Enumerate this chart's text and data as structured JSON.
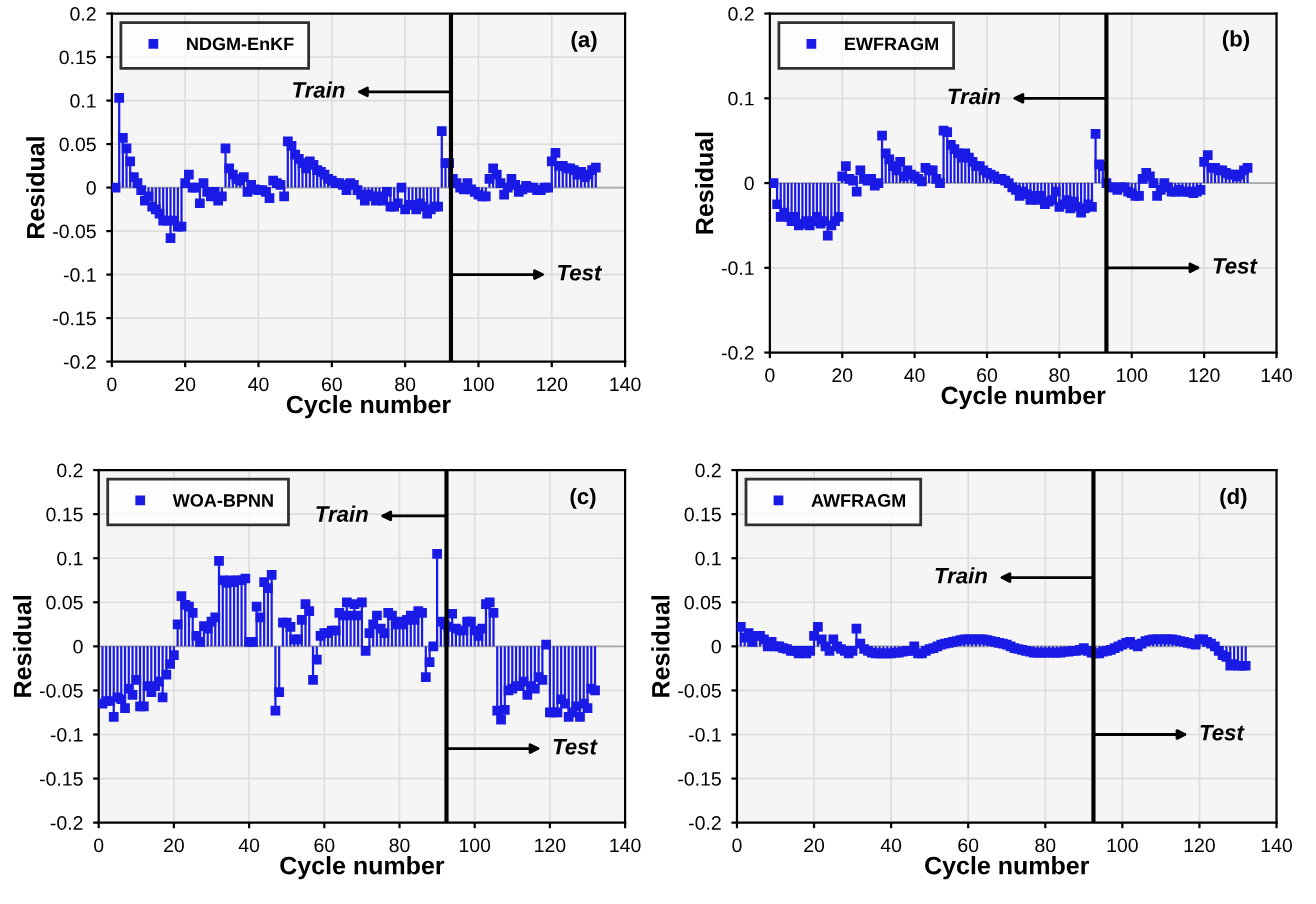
{
  "chart_data": [
    {
      "type": "lollipop",
      "xlabel": "Cycle number",
      "ylabel": "Residual",
      "xlim": [
        0,
        140
      ],
      "xticks": [
        0,
        20,
        40,
        60,
        80,
        100,
        120,
        140
      ],
      "ylim": [
        -0.2,
        0.2
      ],
      "yticks": [
        -0.2,
        -0.15,
        -0.1,
        -0.05,
        0,
        0.05,
        0.1,
        0.15,
        0.2
      ],
      "grid": true,
      "legend": "top left",
      "marker": "square",
      "x": [
        1,
        2,
        3,
        4,
        5,
        6,
        7,
        8,
        9,
        10,
        11,
        12,
        13,
        14,
        15,
        16,
        17,
        18,
        19,
        20,
        21,
        22,
        23,
        24,
        25,
        26,
        27,
        28,
        29,
        30,
        31,
        32,
        33,
        34,
        35,
        36,
        37,
        38,
        39,
        40,
        41,
        42,
        43,
        44,
        45,
        46,
        47,
        48,
        49,
        50,
        51,
        52,
        53,
        54,
        55,
        56,
        57,
        58,
        59,
        60,
        61,
        62,
        63,
        64,
        65,
        66,
        67,
        68,
        69,
        70,
        71,
        72,
        73,
        74,
        75,
        76,
        77,
        78,
        79,
        80,
        81,
        82,
        83,
        84,
        85,
        86,
        87,
        88,
        89,
        90,
        91,
        92,
        93,
        94,
        95,
        96,
        97,
        98,
        99,
        100,
        101,
        102,
        103,
        104,
        105,
        106,
        107,
        108,
        109,
        110,
        111,
        112,
        113,
        114,
        115,
        116,
        117,
        118,
        119,
        120,
        121,
        122,
        123,
        124,
        125,
        126,
        127,
        128,
        129,
        130,
        131,
        132
      ],
      "series": [
        {
          "name": "NDGM-EnKF",
          "color": "#1a1ae6",
          "values": [
            0.0,
            0.103,
            0.057,
            0.045,
            0.03,
            0.012,
            0.005,
            -0.003,
            -0.015,
            -0.01,
            -0.022,
            -0.025,
            -0.03,
            -0.038,
            -0.038,
            -0.058,
            -0.038,
            -0.045,
            -0.045,
            0.005,
            0.015,
            0.0,
            0.0,
            -0.018,
            0.005,
            -0.005,
            -0.01,
            -0.005,
            -0.015,
            -0.01,
            0.045,
            0.022,
            0.015,
            0.01,
            0.008,
            0.012,
            -0.005,
            0.003,
            -0.002,
            -0.003,
            -0.003,
            -0.005,
            -0.012,
            0.008,
            0.005,
            0.003,
            -0.01,
            0.053,
            0.048,
            0.038,
            0.033,
            0.028,
            0.022,
            0.03,
            0.026,
            0.02,
            0.018,
            0.015,
            0.01,
            0.008,
            0.005,
            0.005,
            0.003,
            -0.003,
            0.005,
            0.003,
            -0.003,
            -0.008,
            -0.015,
            -0.008,
            -0.01,
            -0.015,
            -0.01,
            -0.015,
            -0.005,
            -0.022,
            -0.022,
            -0.018,
            0.0,
            -0.025,
            -0.02,
            -0.02,
            -0.025,
            -0.018,
            -0.022,
            -0.03,
            -0.025,
            -0.022,
            -0.022,
            0.065,
            0.028,
            0.028,
            0.01,
            0.005,
            0.0,
            -0.002,
            0.005,
            -0.002,
            -0.005,
            -0.008,
            -0.01,
            -0.01,
            0.01,
            0.022,
            0.015,
            0.005,
            -0.008,
            0.0,
            0.01,
            0.003,
            -0.005,
            -0.002,
            0.002,
            0.0,
            0.0,
            -0.003,
            -0.003,
            0.0,
            0.0,
            0.03,
            0.04,
            0.025,
            0.025,
            0.022,
            0.022,
            0.02,
            0.015,
            0.018,
            0.012,
            0.015,
            0.02,
            0.023
          ]
        }
      ],
      "ref_lines": [
        {
          "axis": "x",
          "value": 92.5,
          "color": "#000000"
        }
      ],
      "annotations": [
        "(a)",
        "Train",
        "Test"
      ]
    },
    {
      "type": "lollipop",
      "xlabel": "Cycle number",
      "ylabel": "Residual",
      "xlim": [
        0,
        140
      ],
      "xticks": [
        0,
        20,
        40,
        60,
        80,
        100,
        120,
        140
      ],
      "ylim": [
        -0.2,
        0.2
      ],
      "yticks": [
        -0.2,
        -0.1,
        0,
        0.1,
        0.2
      ],
      "grid": true,
      "legend": "top left",
      "marker": "square",
      "x": [
        1,
        2,
        3,
        4,
        5,
        6,
        7,
        8,
        9,
        10,
        11,
        12,
        13,
        14,
        15,
        16,
        17,
        18,
        19,
        20,
        21,
        22,
        23,
        24,
        25,
        26,
        27,
        28,
        29,
        30,
        31,
        32,
        33,
        34,
        35,
        36,
        37,
        38,
        39,
        40,
        41,
        42,
        43,
        44,
        45,
        46,
        47,
        48,
        49,
        50,
        51,
        52,
        53,
        54,
        55,
        56,
        57,
        58,
        59,
        60,
        61,
        62,
        63,
        64,
        65,
        66,
        67,
        68,
        69,
        70,
        71,
        72,
        73,
        74,
        75,
        76,
        77,
        78,
        79,
        80,
        81,
        82,
        83,
        84,
        85,
        86,
        87,
        88,
        89,
        90,
        91,
        92,
        93,
        94,
        95,
        96,
        97,
        98,
        99,
        100,
        101,
        102,
        103,
        104,
        105,
        106,
        107,
        108,
        109,
        110,
        111,
        112,
        113,
        114,
        115,
        116,
        117,
        118,
        119,
        120,
        121,
        122,
        123,
        124,
        125,
        126,
        127,
        128,
        129,
        130,
        131,
        132
      ],
      "series": [
        {
          "name": "EWFRAGM",
          "color": "#1a1ae6",
          "values": [
            0.0,
            -0.025,
            -0.04,
            -0.035,
            -0.04,
            -0.045,
            -0.04,
            -0.05,
            -0.048,
            -0.045,
            -0.05,
            -0.045,
            -0.04,
            -0.048,
            -0.045,
            -0.062,
            -0.05,
            -0.045,
            -0.04,
            0.008,
            0.02,
            0.005,
            0.003,
            -0.01,
            0.015,
            0.005,
            0.003,
            0.005,
            -0.003,
            0.0,
            0.056,
            0.035,
            0.028,
            0.02,
            0.015,
            0.025,
            0.008,
            0.015,
            0.01,
            0.008,
            0.005,
            0.002,
            0.018,
            0.015,
            0.015,
            0.005,
            0.0,
            0.062,
            0.06,
            0.045,
            0.04,
            0.035,
            0.03,
            0.035,
            0.03,
            0.025,
            0.02,
            0.02,
            0.015,
            0.012,
            0.01,
            0.008,
            0.005,
            0.005,
            0.003,
            0.0,
            -0.005,
            -0.008,
            -0.015,
            -0.01,
            -0.013,
            -0.02,
            -0.015,
            -0.02,
            -0.015,
            -0.025,
            -0.022,
            -0.02,
            -0.01,
            -0.028,
            -0.025,
            -0.02,
            -0.03,
            -0.022,
            -0.028,
            -0.035,
            -0.03,
            -0.025,
            -0.028,
            0.058,
            0.022,
            0.02,
            0.0,
            -0.005,
            -0.005,
            -0.008,
            -0.005,
            -0.005,
            -0.01,
            -0.012,
            -0.015,
            -0.015,
            0.005,
            0.012,
            0.008,
            0.0,
            -0.015,
            -0.008,
            0.0,
            -0.005,
            -0.01,
            -0.01,
            -0.008,
            -0.01,
            -0.01,
            -0.01,
            -0.012,
            -0.01,
            -0.008,
            0.025,
            0.033,
            0.018,
            0.018,
            0.015,
            0.015,
            0.012,
            0.01,
            0.01,
            0.008,
            0.01,
            0.015,
            0.018
          ]
        }
      ],
      "ref_lines": [
        {
          "axis": "x",
          "value": 93,
          "color": "#000000"
        }
      ],
      "annotations": [
        "(b)",
        "Train",
        "Test"
      ]
    },
    {
      "type": "lollipop",
      "xlabel": "Cycle number",
      "ylabel": "Residual",
      "xlim": [
        0,
        140
      ],
      "xticks": [
        0,
        20,
        40,
        60,
        80,
        100,
        120,
        140
      ],
      "ylim": [
        -0.2,
        0.2
      ],
      "yticks": [
        -0.2,
        -0.15,
        -0.1,
        -0.05,
        0,
        0.05,
        0.1,
        0.15,
        0.2
      ],
      "grid": true,
      "legend": "top left",
      "marker": "square",
      "x": [
        1,
        2,
        3,
        4,
        5,
        6,
        7,
        8,
        9,
        10,
        11,
        12,
        13,
        14,
        15,
        16,
        17,
        18,
        19,
        20,
        21,
        22,
        23,
        24,
        25,
        26,
        27,
        28,
        29,
        30,
        31,
        32,
        33,
        34,
        35,
        36,
        37,
        38,
        39,
        40,
        41,
        42,
        43,
        44,
        45,
        46,
        47,
        48,
        49,
        50,
        51,
        52,
        53,
        54,
        55,
        56,
        57,
        58,
        59,
        60,
        61,
        62,
        63,
        64,
        65,
        66,
        67,
        68,
        69,
        70,
        71,
        72,
        73,
        74,
        75,
        76,
        77,
        78,
        79,
        80,
        81,
        82,
        83,
        84,
        85,
        86,
        87,
        88,
        89,
        90,
        91,
        92,
        93,
        94,
        95,
        96,
        97,
        98,
        99,
        100,
        101,
        102,
        103,
        104,
        105,
        106,
        107,
        108,
        109,
        110,
        111,
        112,
        113,
        114,
        115,
        116,
        117,
        118,
        119,
        120,
        121,
        122,
        123,
        124,
        125,
        126,
        127,
        128,
        129,
        130,
        131,
        132
      ],
      "series": [
        {
          "name": "WOA-BPNN",
          "color": "#1a1ae6",
          "values": [
            -0.065,
            -0.062,
            -0.062,
            -0.08,
            -0.058,
            -0.06,
            -0.07,
            -0.048,
            -0.055,
            -0.038,
            -0.068,
            -0.068,
            -0.045,
            -0.052,
            -0.045,
            -0.04,
            -0.058,
            -0.032,
            -0.02,
            -0.01,
            0.025,
            0.057,
            0.047,
            0.045,
            0.038,
            0.012,
            0.005,
            0.023,
            0.02,
            0.028,
            0.033,
            0.097,
            0.075,
            0.072,
            0.075,
            0.073,
            0.075,
            0.075,
            0.077,
            0.005,
            0.005,
            0.045,
            0.033,
            0.073,
            0.066,
            0.081,
            -0.073,
            -0.052,
            0.027,
            0.027,
            0.022,
            0.008,
            0.008,
            0.03,
            0.048,
            0.04,
            -0.038,
            -0.015,
            0.012,
            0.015,
            0.015,
            0.018,
            0.018,
            0.038,
            0.035,
            0.05,
            0.035,
            0.048,
            0.035,
            0.05,
            -0.005,
            0.015,
            0.025,
            0.035,
            0.02,
            0.015,
            0.038,
            0.035,
            0.025,
            0.028,
            0.025,
            0.03,
            0.035,
            0.03,
            0.04,
            0.038,
            -0.035,
            -0.018,
            0.0,
            0.105,
            0.028,
            0.025,
            0.022,
            0.037,
            0.02,
            0.018,
            0.018,
            0.028,
            0.028,
            0.018,
            0.012,
            0.02,
            0.048,
            0.05,
            0.038,
            -0.073,
            -0.083,
            -0.072,
            -0.05,
            -0.048,
            -0.045,
            -0.045,
            -0.04,
            -0.055,
            -0.045,
            -0.048,
            -0.035,
            -0.038,
            0.002,
            -0.075,
            -0.075,
            -0.075,
            -0.06,
            -0.065,
            -0.08,
            -0.075,
            -0.068,
            -0.08,
            -0.065,
            -0.07,
            -0.048,
            -0.05
          ]
        }
      ],
      "ref_lines": [
        {
          "axis": "x",
          "value": 92.5,
          "color": "#000000"
        }
      ],
      "annotations": [
        "(c)",
        "Train",
        "Test"
      ]
    },
    {
      "type": "lollipop",
      "xlabel": "Cycle number",
      "ylabel": "Residual",
      "xlim": [
        0,
        140
      ],
      "xticks": [
        0,
        20,
        40,
        60,
        80,
        100,
        120,
        140
      ],
      "ylim": [
        -0.2,
        0.2
      ],
      "yticks": [
        -0.2,
        -0.15,
        -0.1,
        -0.05,
        0,
        0.05,
        0.1,
        0.15,
        0.2
      ],
      "grid": true,
      "legend": "top left",
      "marker": "square",
      "x": [
        1,
        2,
        3,
        4,
        5,
        6,
        7,
        8,
        9,
        10,
        11,
        12,
        13,
        14,
        15,
        16,
        17,
        18,
        19,
        20,
        21,
        22,
        23,
        24,
        25,
        26,
        27,
        28,
        29,
        30,
        31,
        32,
        33,
        34,
        35,
        36,
        37,
        38,
        39,
        40,
        41,
        42,
        43,
        44,
        45,
        46,
        47,
        48,
        49,
        50,
        51,
        52,
        53,
        54,
        55,
        56,
        57,
        58,
        59,
        60,
        61,
        62,
        63,
        64,
        65,
        66,
        67,
        68,
        69,
        70,
        71,
        72,
        73,
        74,
        75,
        76,
        77,
        78,
        79,
        80,
        81,
        82,
        83,
        84,
        85,
        86,
        87,
        88,
        89,
        90,
        91,
        92,
        93,
        94,
        95,
        96,
        97,
        98,
        99,
        100,
        101,
        102,
        103,
        104,
        105,
        106,
        107,
        108,
        109,
        110,
        111,
        112,
        113,
        114,
        115,
        116,
        117,
        118,
        119,
        120,
        121,
        122,
        123,
        124,
        125,
        126,
        127,
        128,
        129,
        130,
        131,
        132
      ],
      "series": [
        {
          "name": "AWFRAGM",
          "color": "#1a1ae6",
          "values": [
            0.022,
            0.01,
            0.015,
            0.005,
            0.012,
            0.012,
            0.008,
            0.0,
            0.005,
            0.0,
            0.0,
            -0.002,
            -0.003,
            -0.005,
            -0.005,
            -0.008,
            -0.005,
            -0.008,
            -0.005,
            0.012,
            0.022,
            0.008,
            0.0,
            -0.005,
            0.008,
            0.0,
            -0.003,
            -0.005,
            -0.008,
            -0.005,
            0.02,
            0.003,
            -0.003,
            -0.005,
            -0.007,
            -0.008,
            -0.008,
            -0.008,
            -0.008,
            -0.008,
            -0.007,
            -0.007,
            -0.006,
            -0.005,
            -0.005,
            0.0,
            -0.008,
            -0.008,
            -0.005,
            -0.003,
            -0.002,
            0.0,
            0.002,
            0.003,
            0.004,
            0.005,
            0.006,
            0.007,
            0.008,
            0.008,
            0.008,
            0.008,
            0.008,
            0.008,
            0.007,
            0.006,
            0.005,
            0.004,
            0.003,
            0.002,
            0.0,
            -0.002,
            -0.003,
            -0.004,
            -0.005,
            -0.006,
            -0.007,
            -0.007,
            -0.007,
            -0.007,
            -0.007,
            -0.007,
            -0.007,
            -0.007,
            -0.006,
            -0.006,
            -0.005,
            -0.005,
            -0.004,
            -0.002,
            -0.005,
            -0.007,
            -0.008,
            -0.008,
            -0.006,
            -0.005,
            -0.004,
            -0.002,
            0.0,
            0.002,
            0.004,
            0.005,
            0.002,
            0.0,
            0.003,
            0.006,
            0.007,
            0.008,
            0.008,
            0.008,
            0.008,
            0.008,
            0.008,
            0.007,
            0.006,
            0.005,
            0.004,
            0.003,
            0.002,
            0.008,
            0.008,
            0.005,
            0.003,
            0.0,
            -0.005,
            -0.01,
            -0.012,
            -0.022,
            -0.02,
            -0.022,
            -0.022,
            -0.022
          ]
        }
      ],
      "ref_lines": [
        {
          "axis": "x",
          "value": 92.5,
          "color": "#000000"
        }
      ],
      "annotations": [
        "(d)",
        "Train",
        "Test"
      ]
    }
  ]
}
